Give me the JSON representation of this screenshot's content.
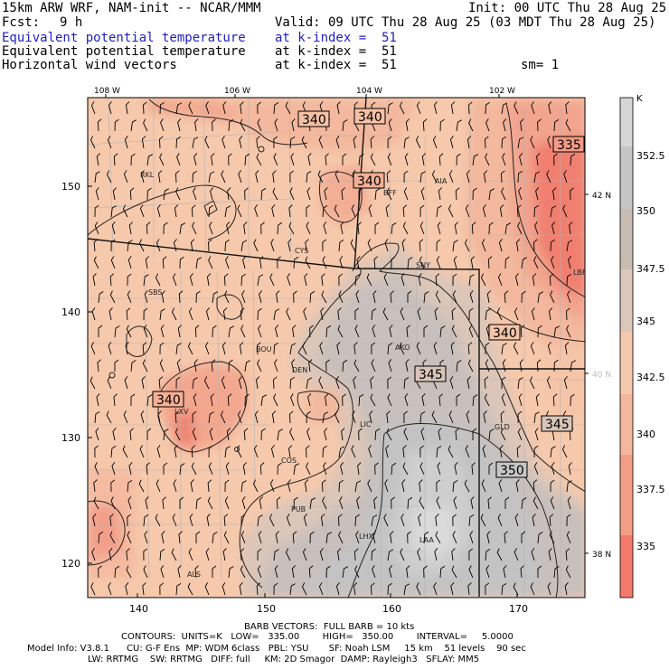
{
  "header": {
    "title": "15km ARW WRF, NAM-init -- NCAR/MMM",
    "init": "Init: 00 UTC Thu 28 Aug 25",
    "fcst_label": "Fcst:",
    "fcst_value": "9 h",
    "valid": "Valid: 09 UTC Thu 28 Aug 25 (03 MDT Thu 28 Aug 25)",
    "fields": [
      {
        "name": "Equivalent potential temperature",
        "level": "at k-index =  51",
        "color": "#1f1fbf"
      },
      {
        "name": "Equivalent potential temperature",
        "level": "at k-index =  51",
        "color": "#000000"
      },
      {
        "name": "Horizontal wind vectors",
        "level": "at k-index =  51",
        "color": "#000000"
      }
    ],
    "smoothing": "sm= 1"
  },
  "map": {
    "top_lon_labels": [
      "108 W",
      "106 W",
      "104 W",
      "102 W"
    ],
    "right_lat_labels": [
      "42 N",
      "40 N",
      "38 N"
    ],
    "bottom_ticks": [
      "140",
      "150",
      "160",
      "170"
    ],
    "left_ticks": [
      "150",
      "140",
      "130",
      "120"
    ],
    "stations": [
      "RKL",
      "BFF",
      "AIA",
      "CYS",
      "SNY",
      "SBS",
      "LBF",
      "AKO",
      "BOU",
      "DEN",
      "LXV",
      "LIC",
      "GLD",
      "COS",
      "PUB",
      "LHX",
      "LAA",
      "ALS"
    ],
    "contour_labels": [
      "340",
      "340",
      "335",
      "340",
      "340",
      "345",
      "340",
      "345",
      "350"
    ]
  },
  "colorbar": {
    "unit": "K",
    "labels": [
      "352.5",
      "350",
      "347.5",
      "345",
      "342.5",
      "340",
      "337.5",
      "335"
    ],
    "colors": [
      "#d6d6d6",
      "#c5c5c5",
      "#c9bcb3",
      "#dcc8bb",
      "#f4c9ad",
      "#f5b79b",
      "#f39e87",
      "#f47b6c"
    ]
  },
  "footer": {
    "line1": "BARB VECTORS:  FULL BARB = 10 kts",
    "line2": "CONTOURS:  UNITS=K   LOW=   335.00        HIGH=   350.00        INTERVAL=     5.0000",
    "line3": "Model Info: V3.8.1      CU: G-F Ens  MP: WDM 6class   PBL: YSU       SF: Noah LSM     15 km    51 levels    90 sec",
    "line4": "LW: RRTMG    SW: RRTMG   DIFF: full     KM: 2D Smagor  DAMP: Rayleigh3   SFLAY: MM5"
  }
}
